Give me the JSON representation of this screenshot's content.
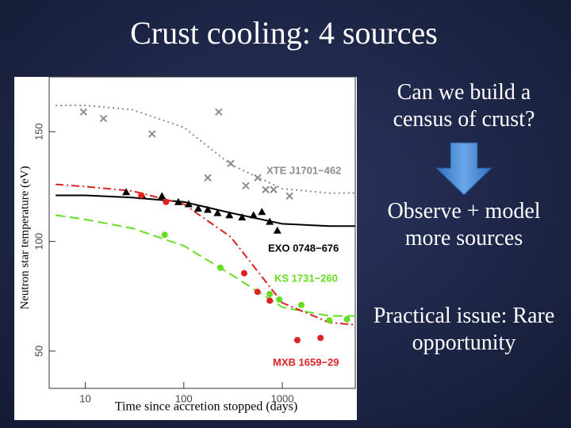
{
  "title": "Crust cooling: 4 sources",
  "side_text": [
    "Can we build a census of crust?",
    "Observe + model more sources",
    "Practical issue: Rare opportunity"
  ],
  "chart_data": {
    "type": "scatter",
    "log_x": true,
    "xlabel": "Time since accretion stopped (days)",
    "ylabel": "Neutron star temperature (eV)",
    "xlim": [
      4.3,
      5500
    ],
    "ylim": [
      33,
      175
    ],
    "xticks": [
      10,
      100,
      1000
    ],
    "yticks": [
      50,
      100,
      150
    ],
    "series": [
      {
        "name": "XTE J1701−462",
        "color": "#8c8c8c",
        "marker": "x",
        "line": "dotted",
        "x": [
          9.6,
          15.3,
          47.6,
          175,
          226,
          299,
          426,
          562,
          677,
          815,
          1183
        ],
        "values": [
          159,
          156,
          149,
          129,
          159,
          135.5,
          125.4,
          129,
          123.6,
          123.6,
          120.7
        ],
        "model_x": [
          5,
          10,
          30,
          100,
          300,
          1000,
          3000,
          5500
        ],
        "model_values": [
          162,
          162,
          160,
          152,
          135,
          124,
          122,
          122
        ]
      },
      {
        "name": "EXO 0748−676",
        "color": "#000000",
        "marker": "triangle",
        "line": "solid",
        "x": [
          26,
          38,
          60,
          88,
          112,
          140,
          175,
          220,
          290,
          390,
          510,
          620,
          745,
          890
        ],
        "values": [
          122.5,
          120.7,
          120.7,
          118,
          117,
          115,
          114.5,
          113,
          112,
          111,
          112,
          113.5,
          109,
          105
        ],
        "model_x": [
          5,
          10,
          30,
          100,
          300,
          1000,
          3000,
          5500
        ],
        "model_values": [
          121,
          121,
          120,
          118,
          113,
          108,
          107,
          107
        ]
      },
      {
        "name": "KS 1731−260",
        "color": "#66dd22",
        "marker": "circle",
        "line": "dashed",
        "x": [
          64,
          235,
          745,
          930,
          1560,
          3000,
          4530
        ],
        "values": [
          103,
          88,
          76,
          73.5,
          71,
          64,
          64.5
        ],
        "model_x": [
          5,
          10,
          30,
          100,
          300,
          1000,
          3000,
          5500
        ],
        "model_values": [
          112,
          110,
          106,
          98,
          85,
          70,
          66,
          66
        ]
      },
      {
        "name": "MXB 1659−29",
        "color": "#dd2222",
        "marker": "circle",
        "line": "dashdot",
        "x": [
          37,
          66,
          410,
          560,
          745,
          1420,
          2440
        ],
        "values": [
          121,
          118,
          85.5,
          77,
          73,
          55,
          56
        ],
        "model_x": [
          5,
          10,
          30,
          100,
          300,
          1000,
          3000,
          5500
        ],
        "model_values": [
          126,
          125,
          123,
          117,
          102,
          72,
          63,
          62
        ]
      }
    ]
  }
}
